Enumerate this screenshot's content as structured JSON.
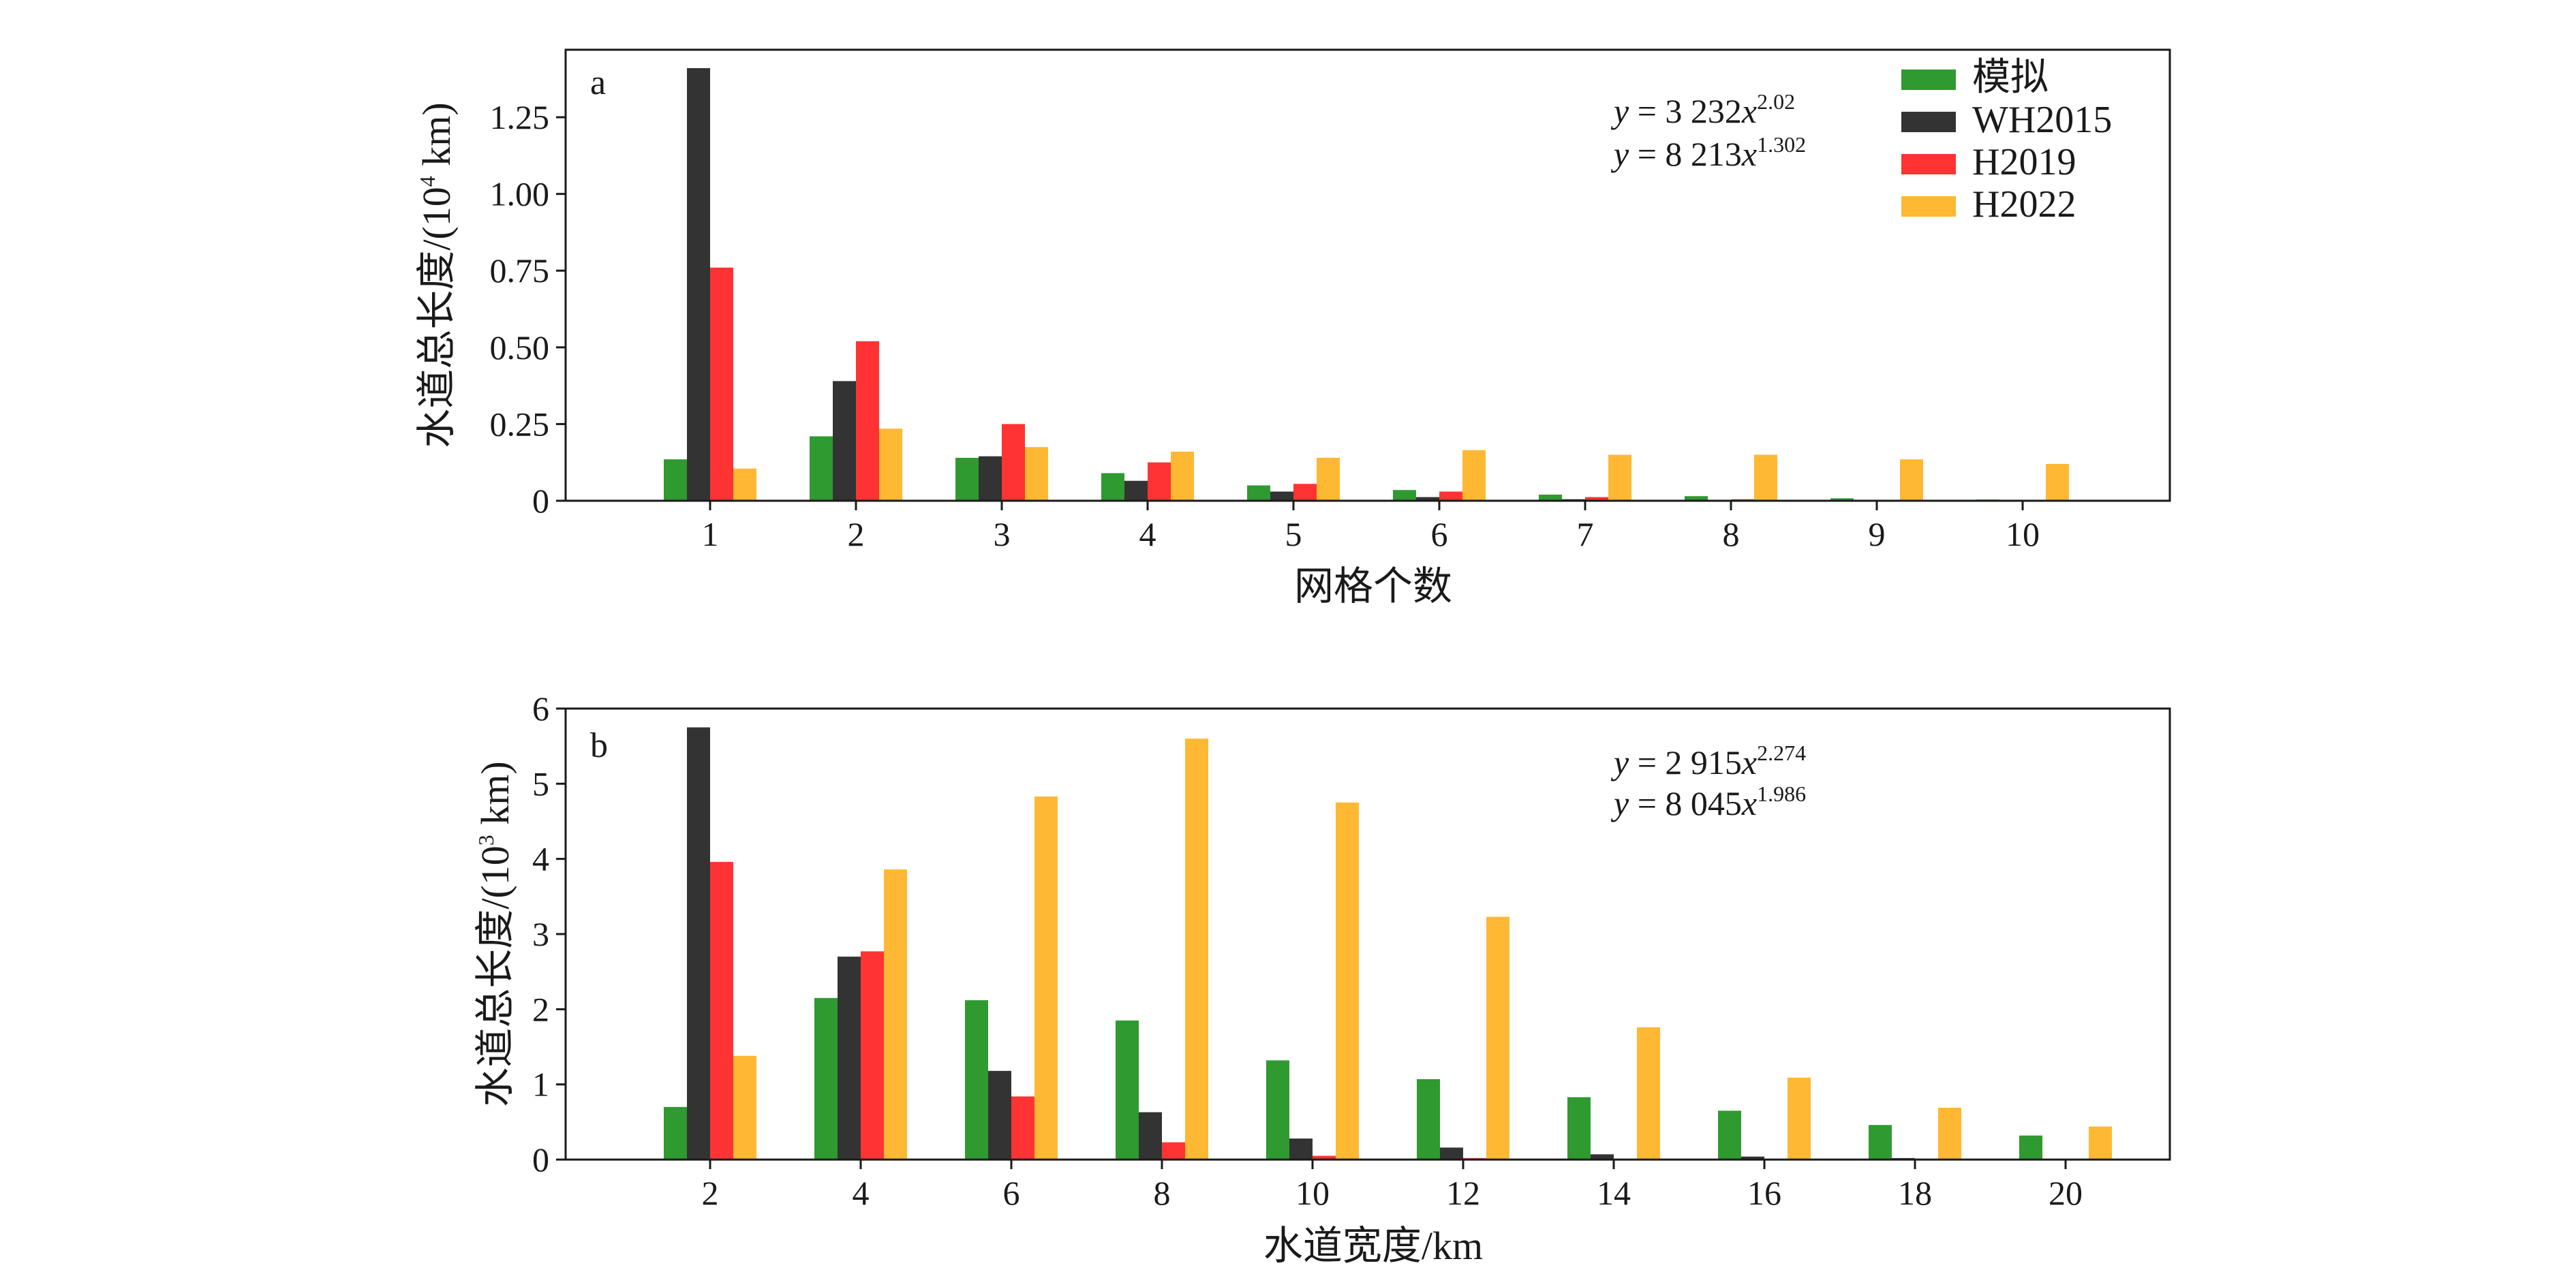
{
  "chart_data": [
    {
      "type": "bar",
      "panel_label": "a",
      "categories": [
        "1",
        "2",
        "3",
        "4",
        "5",
        "6",
        "7",
        "8",
        "9",
        "10"
      ],
      "xlabel": "网格个数",
      "ylabel": "水道总长度/(10⁴ km)",
      "ylabel_parts": {
        "main": "水道总长度/(10",
        "sup": "4",
        "tail": " km)"
      },
      "ylim": [
        0,
        1.47
      ],
      "yticks": [
        0,
        0.25,
        0.5,
        0.75,
        1.0,
        1.25
      ],
      "ytick_labels": [
        "0",
        "0.25",
        "0.50",
        "0.75",
        "1.00",
        "1.25"
      ],
      "equations": [
        {
          "lhs": "y",
          "eq": " = 3 232",
          "var": "x",
          "exp": "2.02"
        },
        {
          "lhs": "y",
          "eq": " = 8 213",
          "var": "x",
          "exp": "1.302"
        }
      ],
      "series": [
        {
          "name": "模拟",
          "color": "#2e9a30",
          "values": [
            0.135,
            0.21,
            0.14,
            0.09,
            0.05,
            0.035,
            0.02,
            0.015,
            0.008,
            0.004
          ]
        },
        {
          "name": "WH2015",
          "color": "#333333",
          "values": [
            1.41,
            0.39,
            0.145,
            0.065,
            0.03,
            0.012,
            0.005,
            0.003,
            0.002,
            0.001
          ]
        },
        {
          "name": "H2019",
          "color": "#ff3333",
          "values": [
            0.76,
            0.52,
            0.25,
            0.125,
            0.055,
            0.03,
            0.012,
            0.005,
            0.002,
            0.001
          ]
        },
        {
          "name": "H2022",
          "color": "#ffb833",
          "values": [
            0.105,
            0.235,
            0.175,
            0.16,
            0.14,
            0.165,
            0.15,
            0.15,
            0.135,
            0.12
          ]
        }
      ],
      "legend": {
        "position": "top-right",
        "entries": [
          "模拟",
          "WH2015",
          "H2019",
          "H2022"
        ]
      }
    },
    {
      "type": "bar",
      "panel_label": "b",
      "categories": [
        "2",
        "4",
        "6",
        "8",
        "10",
        "12",
        "14",
        "16",
        "18",
        "20"
      ],
      "xlabel": "水道宽度/km",
      "ylabel": "水道总长度/(10³ km)",
      "ylabel_parts": {
        "main": "水道总长度/(10",
        "sup": "3",
        "tail": " km)"
      },
      "ylim": [
        0,
        6
      ],
      "yticks": [
        0,
        1,
        2,
        3,
        4,
        5,
        6
      ],
      "ytick_labels": [
        "0",
        "1",
        "2",
        "3",
        "4",
        "5",
        "6"
      ],
      "equations": [
        {
          "lhs": "y",
          "eq": " = 2 915",
          "var": "x",
          "exp": "2.274"
        },
        {
          "lhs": "y",
          "eq": " = 8 045",
          "var": "x",
          "exp": "1.986"
        }
      ],
      "series": [
        {
          "name": "模拟",
          "color": "#2e9a30",
          "values": [
            0.7,
            2.15,
            2.12,
            1.85,
            1.32,
            1.07,
            0.83,
            0.65,
            0.46,
            0.32
          ]
        },
        {
          "name": "WH2015",
          "color": "#333333",
          "values": [
            5.75,
            2.7,
            1.18,
            0.63,
            0.28,
            0.16,
            0.07,
            0.04,
            0.02,
            0.01
          ]
        },
        {
          "name": "H2019",
          "color": "#ff3333",
          "values": [
            3.96,
            2.77,
            0.84,
            0.23,
            0.05,
            0.02,
            0.01,
            0.005,
            0.0,
            0.0
          ]
        },
        {
          "name": "H2022",
          "color": "#ffb833",
          "values": [
            1.38,
            3.86,
            4.83,
            5.6,
            4.75,
            3.23,
            1.76,
            1.09,
            0.69,
            0.44
          ]
        }
      ]
    }
  ]
}
